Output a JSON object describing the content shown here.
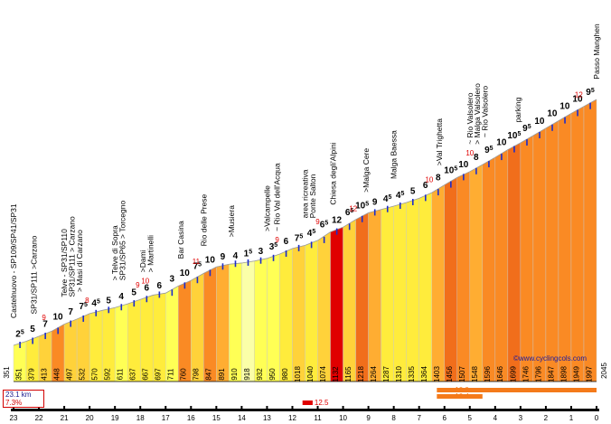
{
  "chart_data": {
    "type": "area",
    "title": "Passo Manghen",
    "summary": {
      "distance": "23.1 km",
      "avg_gradient": "7.3%"
    },
    "credit": "www.cyclingcols.com",
    "credit_icon": "copyright-symbol",
    "distance_ticks": [
      "23",
      "22",
      "21",
      "20",
      "19",
      "18",
      "17",
      "16",
      "15",
      "14",
      "13",
      "12",
      "11",
      "10",
      "9",
      "8",
      "7",
      "6",
      "5",
      "4",
      "3",
      "2",
      "1",
      "0"
    ],
    "start_altitude": "351",
    "end_altitude": "2045",
    "x_range_km": [
      23,
      0
    ],
    "y_range_m": [
      300,
      2100
    ],
    "segments": [
      {
        "grad": "2",
        "sup": "5",
        "alt": 351
      },
      {
        "grad": "5",
        "sup": "",
        "alt": 379
      },
      {
        "grad": "7",
        "sup": "",
        "alt": 413
      },
      {
        "grad": "10",
        "sup": "",
        "alt": 448
      },
      {
        "grad": "7",
        "sup": "",
        "alt": 497
      },
      {
        "grad": "7",
        "sup": "5",
        "alt": 532
      },
      {
        "grad": "4",
        "sup": "5",
        "alt": 570
      },
      {
        "grad": "5",
        "sup": "",
        "alt": 592
      },
      {
        "grad": "4",
        "sup": "",
        "alt": 611
      },
      {
        "grad": "5",
        "sup": "",
        "alt": 637
      },
      {
        "grad": "6",
        "sup": "",
        "alt": 667
      },
      {
        "grad": "6",
        "sup": "",
        "alt": 697
      },
      {
        "grad": "3",
        "sup": "",
        "alt": 711
      },
      {
        "grad": "10",
        "sup": "",
        "alt": 760
      },
      {
        "grad": "7",
        "sup": "5",
        "alt": 798
      },
      {
        "grad": "10",
        "sup": "",
        "alt": 847
      },
      {
        "grad": "9",
        "sup": "",
        "alt": 891
      },
      {
        "grad": "4",
        "sup": "",
        "alt": 910
      },
      {
        "grad": "1",
        "sup": "5",
        "alt": 918
      },
      {
        "grad": "3",
        "sup": "",
        "alt": 932
      },
      {
        "grad": "3",
        "sup": "5",
        "alt": 950
      },
      {
        "grad": "6",
        "sup": "",
        "alt": 980
      },
      {
        "grad": "7",
        "sup": "5",
        "alt": 1018
      },
      {
        "grad": "4",
        "sup": "5",
        "alt": 1040
      },
      {
        "grad": "6",
        "sup": "5",
        "alt": 1074
      },
      {
        "grad": "12",
        "sup": "",
        "alt": 1132
      },
      {
        "grad": "6",
        "sup": "5",
        "alt": 1165
      },
      {
        "grad": "10",
        "sup": "5",
        "alt": 1218
      },
      {
        "grad": "9",
        "sup": "",
        "alt": 1264
      },
      {
        "grad": "4",
        "sup": "5",
        "alt": 1287
      },
      {
        "grad": "4",
        "sup": "5",
        "alt": 1310
      },
      {
        "grad": "5",
        "sup": "",
        "alt": 1335
      },
      {
        "grad": "6",
        "sup": "",
        "alt": 1364
      },
      {
        "grad": "8",
        "sup": "",
        "alt": 1403
      },
      {
        "grad": "10",
        "sup": "5",
        "alt": 1456
      },
      {
        "grad": "10",
        "sup": "",
        "alt": 1507
      },
      {
        "grad": "8",
        "sup": "",
        "alt": 1548
      },
      {
        "grad": "9",
        "sup": "5",
        "alt": 1596
      },
      {
        "grad": "10",
        "sup": "",
        "alt": 1646
      },
      {
        "grad": "10",
        "sup": "5",
        "alt": 1699
      },
      {
        "grad": "9",
        "sup": "5",
        "alt": 1746
      },
      {
        "grad": "10",
        "sup": "",
        "alt": 1796
      },
      {
        "grad": "10",
        "sup": "",
        "alt": 1847
      },
      {
        "grad": "10",
        "sup": "",
        "alt": 1898
      },
      {
        "grad": "10",
        "sup": "",
        "alt": 1949
      },
      {
        "grad": "9",
        "sup": "5",
        "alt": 1997
      }
    ],
    "max_gradient_labels": [
      {
        "km": 21.8,
        "value": "9"
      },
      {
        "km": 20.1,
        "value": "8"
      },
      {
        "km": 18.1,
        "value": "9"
      },
      {
        "km": 17.8,
        "value": "10"
      },
      {
        "km": 15.8,
        "value": "11"
      },
      {
        "km": 12.6,
        "value": "9"
      },
      {
        "km": 11.0,
        "value": "9"
      },
      {
        "km": 9.6,
        "value": "12"
      },
      {
        "km": 6.6,
        "value": "10"
      },
      {
        "km": 5.0,
        "value": "10"
      },
      {
        "km": 0.7,
        "value": "12"
      }
    ],
    "places": [
      {
        "km": 23.0,
        "name": "Castelnuovo - SP109/SP41/SP31"
      },
      {
        "km": 22.2,
        "name": "SP31/SP111 >Carzano"
      },
      {
        "km": 21.0,
        "name": "Telve - SP31/SP110"
      },
      {
        "km": 20.7,
        "name": "SP31/SP111 > Carzano"
      },
      {
        "km": 20.4,
        "name": "> Masi di Carzano"
      },
      {
        "km": 19.0,
        "name": "> Telve di Sopra"
      },
      {
        "km": 18.7,
        "name": "SP31/SP65 > Torcegno"
      },
      {
        "km": 17.9,
        "name": ">Dami"
      },
      {
        "km": 17.6,
        "name": "> Martinelli"
      },
      {
        "km": 16.4,
        "name": "Bar Casina"
      },
      {
        "km": 15.5,
        "name": "Rio delle Prese"
      },
      {
        "km": 14.4,
        "name": ">Musiera"
      },
      {
        "km": 13.0,
        "name": ">Valcampelle"
      },
      {
        "km": 12.6,
        "name": "~ Rio Val dell'Acqua"
      },
      {
        "km": 11.5,
        "name": "area ricreativa"
      },
      {
        "km": 11.2,
        "name": "Ponte Salton"
      },
      {
        "km": 10.4,
        "name": "Chiesa degli'Alpini"
      },
      {
        "km": 9.1,
        "name": ">Malga Cere"
      },
      {
        "km": 8.0,
        "name": "Malga Baessa"
      },
      {
        "km": 6.2,
        "name": ">Val Trighetta"
      },
      {
        "km": 5.0,
        "name": "~ Rio Valsolero"
      },
      {
        "km": 4.7,
        "name": "> Malga Valsolero"
      },
      {
        "km": 4.4,
        "name": "~ Rio Valsolero"
      },
      {
        "km": 3.1,
        "name": "parking"
      },
      {
        "km": 0.0,
        "name": "Passo Manghen"
      }
    ],
    "steepest_bars": [
      {
        "from_km": 6.3,
        "to_km": 0.0,
        "value": "10.0"
      },
      {
        "from_km": 6.3,
        "to_km": 4.5,
        "value": "10.4"
      },
      {
        "from_km": 11.6,
        "to_km": 11.2,
        "value": "12.5"
      }
    ],
    "color_scale": [
      {
        "max": 0.9,
        "color": "#ffffff"
      },
      {
        "max": 2,
        "color": "#fbffa8"
      },
      {
        "max": 4,
        "color": "#ffff55"
      },
      {
        "max": 6,
        "color": "#ffec3c"
      },
      {
        "max": 7.5,
        "color": "#ffd23a"
      },
      {
        "max": 9,
        "color": "#ffad32"
      },
      {
        "max": 10,
        "color": "#fa8a24"
      },
      {
        "max": 11,
        "color": "#f16e1b"
      },
      {
        "max": 12,
        "color": "#e8561a"
      },
      {
        "max": 99,
        "color": "#e00000"
      }
    ],
    "special_colors": {
      "steepest": "#e00000",
      "bar_orange": "#f47a1a",
      "bar_red": "#e00000",
      "km_tick": "#000000"
    }
  }
}
